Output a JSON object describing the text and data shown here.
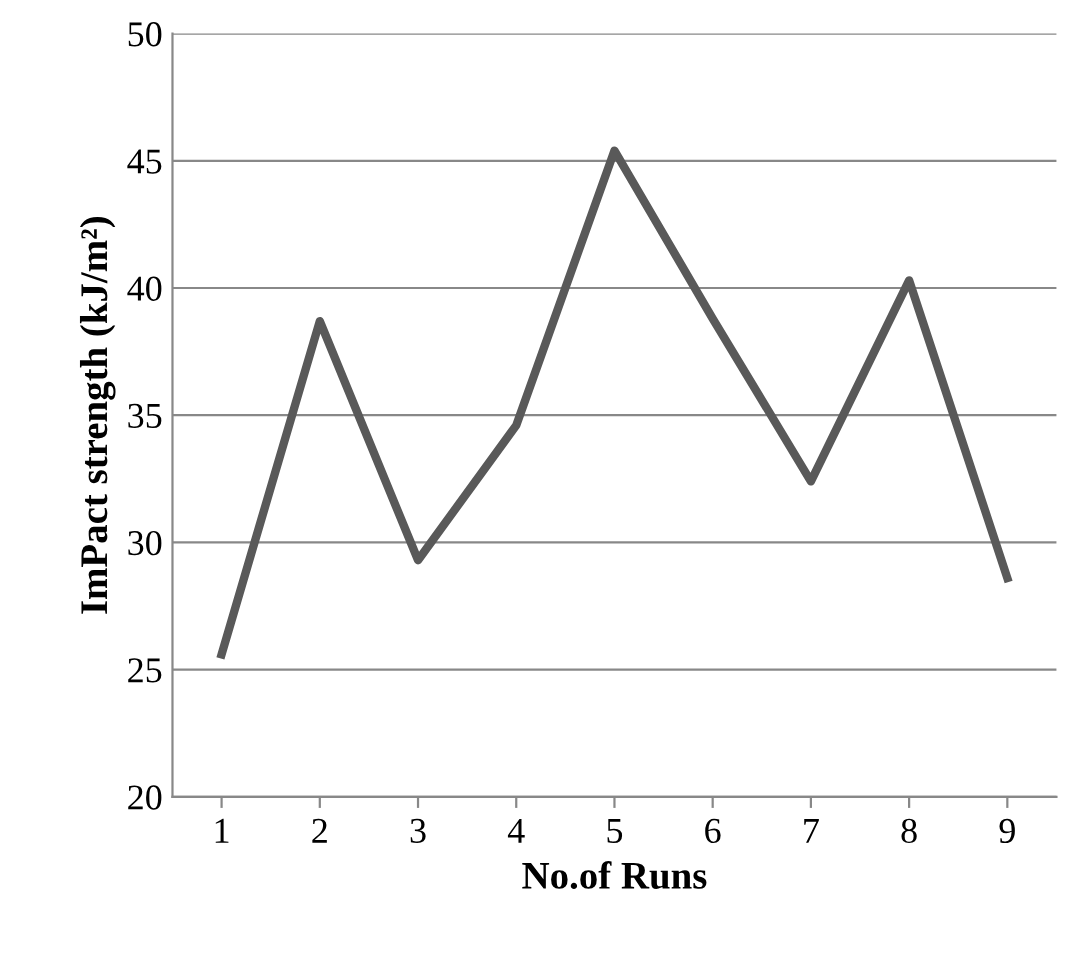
{
  "chart_data": {
    "type": "line",
    "xlabel": "No.of Runs",
    "ylabel": "ImPact strength (kJ/m²)",
    "categories": [
      "1",
      "2",
      "3",
      "4",
      "5",
      "6",
      "7",
      "8",
      "9"
    ],
    "series": [
      {
        "color": "#595959",
        "values": [
          25.6,
          38.7,
          29.3,
          34.6,
          45.4,
          38.8,
          32.4,
          40.3,
          28.6
        ]
      }
    ],
    "ylim": [
      20,
      50
    ],
    "yticks": [
      20,
      25,
      30,
      35,
      40,
      45,
      50
    ],
    "grid": "y",
    "marker": "none",
    "line_style": "solid"
  }
}
